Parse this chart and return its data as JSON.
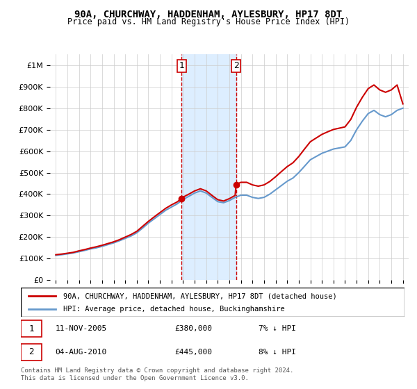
{
  "title": "90A, CHURCHWAY, HADDENHAM, AYLESBURY, HP17 8DT",
  "subtitle": "Price paid vs. HM Land Registry's House Price Index (HPI)",
  "ylabel_ticks": [
    "£0",
    "£100K",
    "£200K",
    "£300K",
    "£400K",
    "£500K",
    "£600K",
    "£700K",
    "£800K",
    "£900K",
    "£1M"
  ],
  "ytick_values": [
    0,
    100000,
    200000,
    300000,
    400000,
    500000,
    600000,
    700000,
    800000,
    900000,
    1000000
  ],
  "ylim": [
    0,
    1050000
  ],
  "legend_label_red": "90A, CHURCHWAY, HADDENHAM, AYLESBURY, HP17 8DT (detached house)",
  "legend_label_blue": "HPI: Average price, detached house, Buckinghamshire",
  "transaction1_label": "1",
  "transaction1_date": "11-NOV-2005",
  "transaction1_price": "£380,000",
  "transaction1_pct": "7% ↓ HPI",
  "transaction2_label": "2",
  "transaction2_date": "04-AUG-2010",
  "transaction2_price": "£445,000",
  "transaction2_pct": "8% ↓ HPI",
  "footer": "Contains HM Land Registry data © Crown copyright and database right 2024.\nThis data is licensed under the Open Government Licence v3.0.",
  "red_color": "#cc0000",
  "blue_color": "#6699cc",
  "shade_color": "#ddeeff",
  "grid_color": "#cccccc",
  "bg_color": "#ffffff",
  "transaction1_x": 2005.87,
  "transaction2_x": 2010.58,
  "hpi_years": [
    1995,
    1995.5,
    1996,
    1996.5,
    1997,
    1997.5,
    1998,
    1998.5,
    1999,
    1999.5,
    2000,
    2000.5,
    2001,
    2001.5,
    2002,
    2002.5,
    2003,
    2003.5,
    2004,
    2004.5,
    2005,
    2005.5,
    2006,
    2006.5,
    2007,
    2007.5,
    2008,
    2008.5,
    2009,
    2009.5,
    2010,
    2010.5,
    2011,
    2011.5,
    2012,
    2012.5,
    2013,
    2013.5,
    2014,
    2014.5,
    2015,
    2015.5,
    2016,
    2016.5,
    2017,
    2017.5,
    2018,
    2018.5,
    2019,
    2019.5,
    2020,
    2020.5,
    2021,
    2021.5,
    2022,
    2022.5,
    2023,
    2023.5,
    2024,
    2024.5,
    2025
  ],
  "hpi_values": [
    115000,
    118000,
    122000,
    126000,
    132000,
    138000,
    145000,
    150000,
    157000,
    165000,
    173000,
    183000,
    194000,
    205000,
    220000,
    242000,
    265000,
    285000,
    305000,
    325000,
    340000,
    355000,
    375000,
    390000,
    405000,
    415000,
    405000,
    385000,
    365000,
    360000,
    370000,
    385000,
    395000,
    395000,
    385000,
    380000,
    385000,
    400000,
    420000,
    440000,
    460000,
    475000,
    500000,
    530000,
    560000,
    575000,
    590000,
    600000,
    610000,
    615000,
    620000,
    650000,
    700000,
    740000,
    775000,
    790000,
    770000,
    760000,
    770000,
    790000,
    800000
  ],
  "property_years": [
    1995,
    1995.5,
    1996,
    1996.5,
    1997,
    1997.5,
    1998,
    1998.5,
    1999,
    1999.5,
    2000,
    2000.5,
    2001,
    2001.5,
    2002,
    2002.5,
    2003,
    2003.5,
    2004,
    2004.5,
    2005,
    2005.5,
    2005.87,
    2005.87,
    2006,
    2006.5,
    2007,
    2007.5,
    2008,
    2008.5,
    2009,
    2009.5,
    2010,
    2010.5,
    2010.58,
    2010.58,
    2011,
    2011.5,
    2012,
    2012.5,
    2013,
    2013.5,
    2014,
    2014.5,
    2015,
    2015.5,
    2016,
    2016.5,
    2017,
    2017.5,
    2018,
    2018.5,
    2019,
    2019.5,
    2020,
    2020.5,
    2021,
    2021.5,
    2022,
    2022.5,
    2023,
    2023.5,
    2024,
    2024.5,
    2025
  ],
  "property_values": [
    118000,
    121000,
    125000,
    129000,
    136000,
    142000,
    149000,
    155000,
    162000,
    170000,
    178000,
    188000,
    200000,
    212000,
    227000,
    250000,
    273000,
    294000,
    314000,
    334000,
    350000,
    364000,
    380000,
    380000,
    386000,
    400000,
    415000,
    425000,
    415000,
    394000,
    374000,
    368000,
    379000,
    394000,
    445000,
    445000,
    455000,
    455000,
    443000,
    437000,
    443000,
    459000,
    481000,
    505000,
    528000,
    546000,
    575000,
    610000,
    644000,
    661000,
    678000,
    690000,
    701000,
    707000,
    713000,
    748000,
    805000,
    851000,
    891000,
    908000,
    885000,
    874000,
    885000,
    908000,
    820000
  ],
  "xtick_years": [
    1995,
    1996,
    1997,
    1998,
    1999,
    2000,
    2001,
    2002,
    2003,
    2004,
    2005,
    2006,
    2007,
    2008,
    2009,
    2010,
    2011,
    2012,
    2013,
    2014,
    2015,
    2016,
    2017,
    2018,
    2019,
    2020,
    2021,
    2022,
    2023,
    2024,
    2025
  ]
}
